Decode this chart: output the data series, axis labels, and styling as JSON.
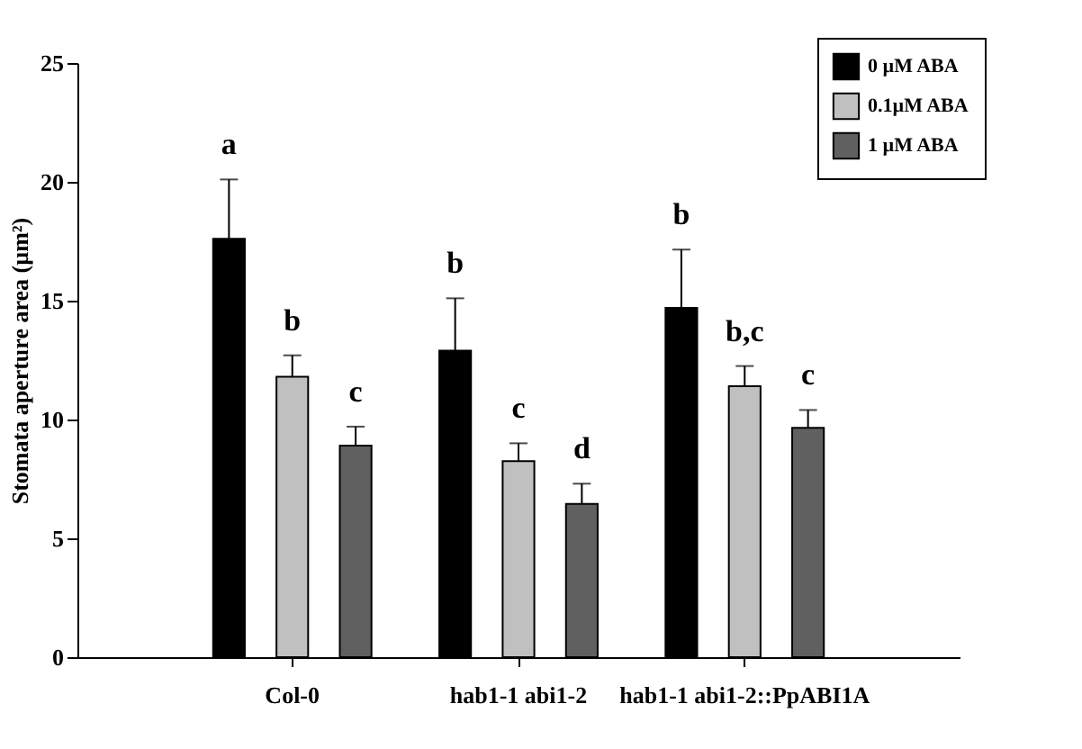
{
  "chart_data": {
    "type": "bar",
    "ylabel": "Stomata aperture area (µm²)",
    "categories": [
      "Col-0",
      "hab1-1 abi1-2",
      "hab1-1 abi1-2::PpABI1A"
    ],
    "series": [
      {
        "name": "0 µM ABA",
        "color": "#000000",
        "values": [
          17.6,
          12.9,
          14.7
        ],
        "errors": [
          [
            17.6,
            20.1
          ],
          [
            12.9,
            15.1
          ],
          [
            14.7,
            17.15
          ]
        ]
      },
      {
        "name": "0.1µM ABA",
        "color": "#c0c0c0",
        "values": [
          11.8,
          8.25,
          11.4
        ],
        "errors": [
          [
            11.8,
            12.7
          ],
          [
            8.25,
            9.0
          ],
          [
            11.4,
            12.25
          ]
        ]
      },
      {
        "name": "1 µM ABA",
        "color": "#606060",
        "values": [
          8.9,
          6.45,
          9.65
        ],
        "errors": [
          [
            8.9,
            9.7
          ],
          [
            6.45,
            7.3
          ],
          [
            9.65,
            10.4
          ]
        ]
      }
    ],
    "ylim": [
      0,
      25
    ],
    "yticks": [
      0,
      5,
      10,
      15,
      20,
      25
    ],
    "grid": false,
    "legend": "top right",
    "annotations": [
      "a",
      "b",
      "c",
      "b",
      "c",
      "d",
      "b",
      "b,c",
      "c"
    ]
  }
}
